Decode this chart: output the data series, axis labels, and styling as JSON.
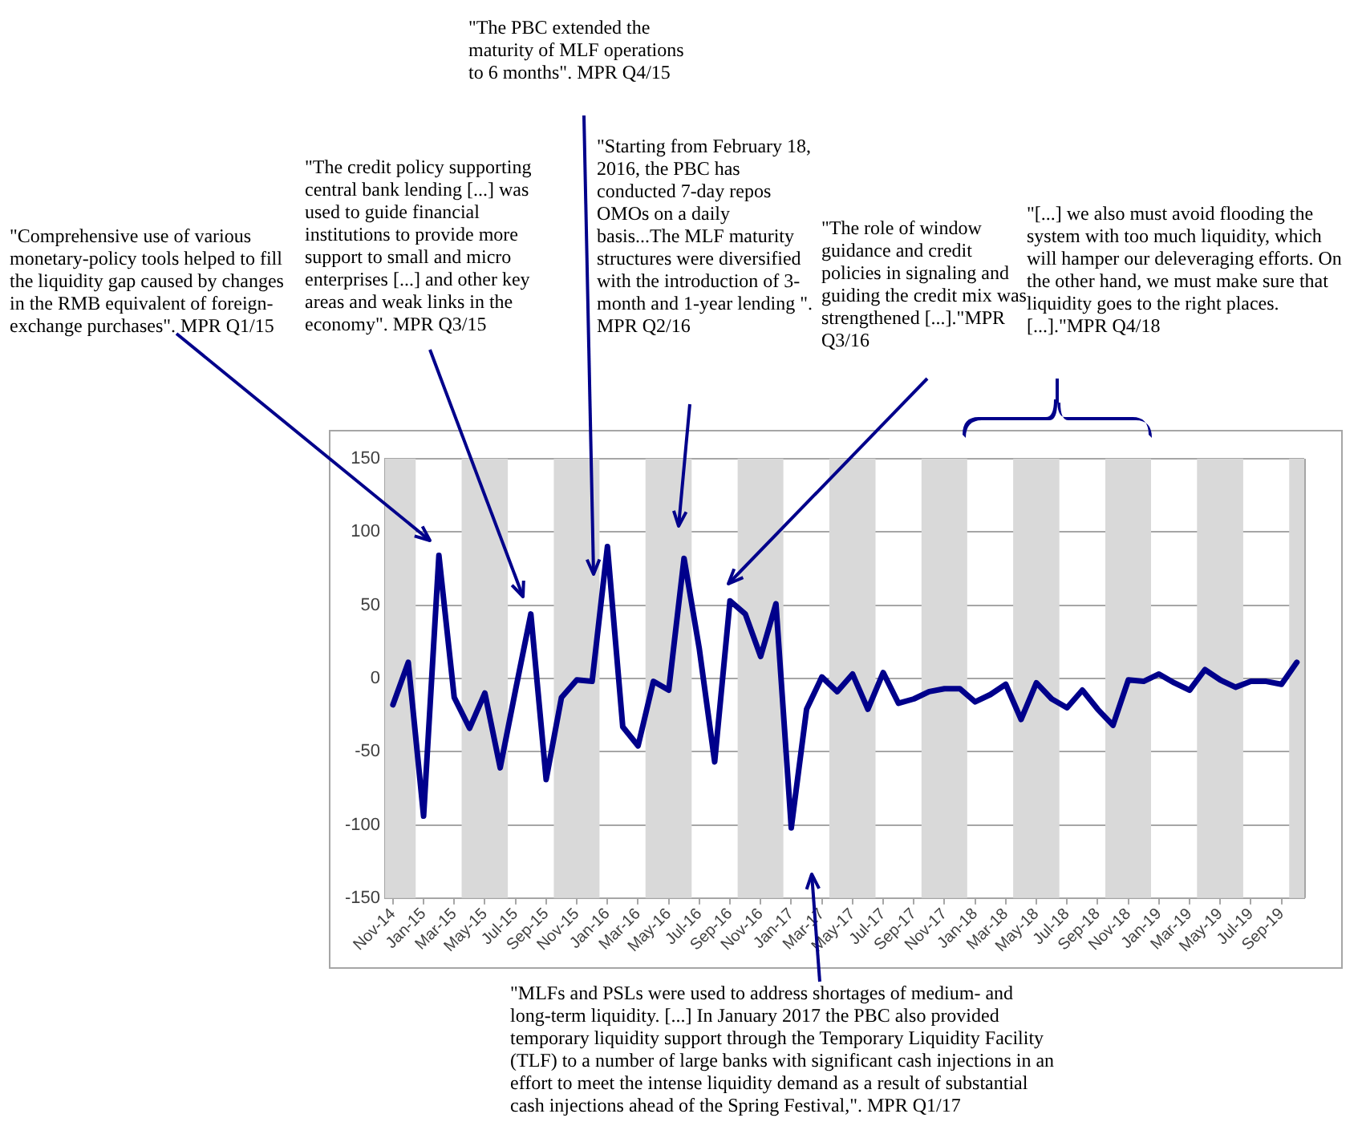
{
  "chart_data": {
    "type": "line",
    "x": [
      "2014-11",
      "2014-12",
      "2015-01",
      "2015-02",
      "2015-03",
      "2015-04",
      "2015-05",
      "2015-06",
      "2015-07",
      "2015-08",
      "2015-09",
      "2015-10",
      "2015-11",
      "2015-12",
      "2016-01",
      "2016-02",
      "2016-03",
      "2016-04",
      "2016-05",
      "2016-06",
      "2016-07",
      "2016-08",
      "2016-09",
      "2016-10",
      "2016-11",
      "2016-12",
      "2017-01",
      "2017-02",
      "2017-03",
      "2017-04",
      "2017-05",
      "2017-06",
      "2017-07",
      "2017-08",
      "2017-09",
      "2017-10",
      "2017-11",
      "2017-12",
      "2018-01",
      "2018-02",
      "2018-03",
      "2018-04",
      "2018-05",
      "2018-06",
      "2018-07",
      "2018-08",
      "2018-09",
      "2018-10",
      "2018-11",
      "2018-12",
      "2019-01",
      "2019-02",
      "2019-03",
      "2019-04",
      "2019-05",
      "2019-06",
      "2019-07",
      "2019-08",
      "2019-09",
      "2019-10"
    ],
    "series": [
      {
        "color": "#00008b",
        "values": [
          -18,
          11,
          -94,
          84,
          -13,
          -34,
          -10,
          -61,
          -8,
          44,
          -69,
          -13,
          -1,
          -2,
          90,
          -33,
          -46,
          -2,
          -8,
          82,
          20,
          -57,
          53,
          44,
          15,
          51,
          -102,
          -21,
          1,
          -9,
          3,
          -21,
          4,
          -17,
          -14,
          -9,
          -7,
          -7,
          -16,
          -11,
          -4,
          -28,
          -3,
          -14,
          -20,
          -8,
          -21,
          -32,
          -1,
          -2,
          3,
          -3,
          -8,
          6,
          -1,
          -6,
          -2,
          -2,
          -4,
          11
        ]
      }
    ],
    "xlim": [
      "2014-10-16",
      "2019-10-16"
    ],
    "xticks": [
      {
        "value": "2014-11",
        "label": "Nov-14"
      },
      {
        "value": "2015-01",
        "label": "Jan-15"
      },
      {
        "value": "2015-03",
        "label": "Mar-15"
      },
      {
        "value": "2015-05",
        "label": "May-15"
      },
      {
        "value": "2015-07",
        "label": "Jul-15"
      },
      {
        "value": "2015-09",
        "label": "Sep-15"
      },
      {
        "value": "2015-11",
        "label": "Nov-15"
      },
      {
        "value": "2016-01",
        "label": "Jan-16"
      },
      {
        "value": "2016-03",
        "label": "Mar-16"
      },
      {
        "value": "2016-05",
        "label": "May-16"
      },
      {
        "value": "2016-07",
        "label": "Jul-16"
      },
      {
        "value": "2016-09",
        "label": "Sep-16"
      },
      {
        "value": "2016-11",
        "label": "Nov-16"
      },
      {
        "value": "2017-01",
        "label": "Jan-17"
      },
      {
        "value": "2017-03",
        "label": "Mar-17"
      },
      {
        "value": "2017-05",
        "label": "May-17"
      },
      {
        "value": "2017-07",
        "label": "Jul-17"
      },
      {
        "value": "2017-09",
        "label": "Sep-17"
      },
      {
        "value": "2017-11",
        "label": "Nov-17"
      },
      {
        "value": "2018-01",
        "label": "Jan-18"
      },
      {
        "value": "2018-03",
        "label": "Mar-18"
      },
      {
        "value": "2018-05",
        "label": "May-18"
      },
      {
        "value": "2018-07",
        "label": "Jul-18"
      },
      {
        "value": "2018-09",
        "label": "Sep-18"
      },
      {
        "value": "2018-11",
        "label": "Nov-18"
      },
      {
        "value": "2019-01",
        "label": "Jan-19"
      },
      {
        "value": "2019-03",
        "label": "Mar-19"
      },
      {
        "value": "2019-05",
        "label": "May-19"
      },
      {
        "value": "2019-07",
        "label": "Jul-19"
      },
      {
        "value": "2019-09",
        "label": "Sep-19"
      }
    ],
    "ylim": [
      -150,
      150
    ],
    "yticks": [
      -150,
      -100,
      -50,
      0,
      50,
      100,
      150
    ],
    "grid": "y",
    "marker": "none",
    "line_style": "solid",
    "bands": [
      {
        "axis": "x",
        "from": "2014-10-16",
        "to": "2014-12-16",
        "color": "#d9d9d9"
      },
      {
        "axis": "x",
        "from": "2015-03-16",
        "to": "2015-06-16",
        "color": "#d9d9d9"
      },
      {
        "axis": "x",
        "from": "2015-09-16",
        "to": "2015-12-16",
        "color": "#d9d9d9"
      },
      {
        "axis": "x",
        "from": "2016-03-16",
        "to": "2016-06-16",
        "color": "#d9d9d9"
      },
      {
        "axis": "x",
        "from": "2016-09-16",
        "to": "2016-12-16",
        "color": "#d9d9d9"
      },
      {
        "axis": "x",
        "from": "2017-03-16",
        "to": "2017-06-16",
        "color": "#d9d9d9"
      },
      {
        "axis": "x",
        "from": "2017-09-16",
        "to": "2017-12-16",
        "color": "#d9d9d9"
      },
      {
        "axis": "x",
        "from": "2018-03-16",
        "to": "2018-06-16",
        "color": "#d9d9d9"
      },
      {
        "axis": "x",
        "from": "2018-09-16",
        "to": "2018-12-16",
        "color": "#d9d9d9"
      },
      {
        "axis": "x",
        "from": "2019-03-16",
        "to": "2019-06-16",
        "color": "#d9d9d9"
      },
      {
        "axis": "x",
        "from": "2019-09-16",
        "to": "2019-10-16",
        "color": "#d9d9d9"
      }
    ],
    "annotations": [
      {
        "text": "\"Comprehensive use of various monetary-policy tools helped to fill the liquidity gap caused by changes in the RMB equivalent of foreign-exchange purchases\". MPR Q1/15"
      },
      {
        "text": "\"The credit policy supporting central bank lending [...] was used to guide financial institutions to provide more support to small and micro enterprises [...] and other key areas and weak links in the economy\". MPR Q3/15"
      },
      {
        "text": "\"The PBC extended the maturity of MLF operations to 6 months\". MPR Q4/15"
      },
      {
        "text": "\"Starting from February 18, 2016, the PBC has conducted 7-day repos OMOs on a daily basis...The MLF maturity structures were diversified with the introduction of 3-month and 1-year lending \". MPR Q2/16"
      },
      {
        "text": "\"The role of window guidance and credit policies in signaling and guiding the credit mix was strengthened [...].\"MPR Q3/16"
      },
      "\"[...] we also must avoid flooding the system with too much liquidity, which will hamper our deleveraging efforts. On the other hand, we must make sure that liquidity goes to the right places.[...].\"MPR Q4/18",
      {
        "text": "\"MLFs and PSLs were used to address shortages of medium- and long-term liquidity. [...] In January 2017 the PBC also provided temporary liquidity support through the Temporary Liquidity Facility (TLF) to a number of large banks with significant cash injections in an effort to meet the intense liquidity demand as a result of substantial cash injections ahead of the Spring Festival,\". MPR Q1/17"
      }
    ]
  }
}
